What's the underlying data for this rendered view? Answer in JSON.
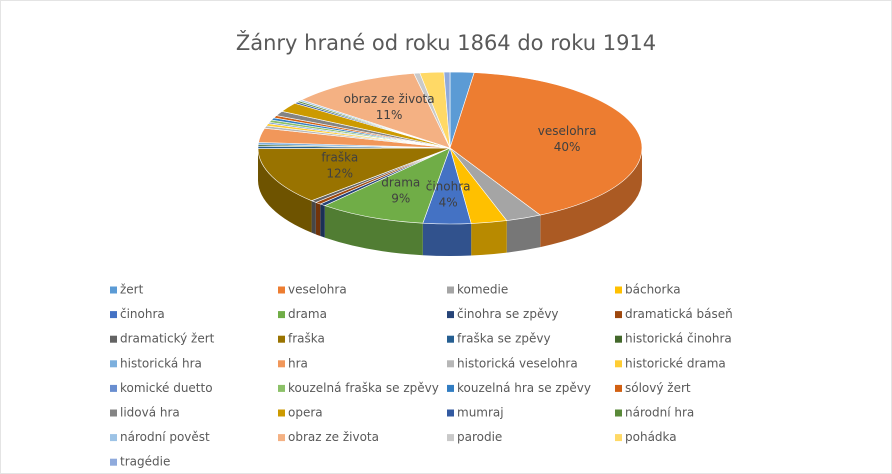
{
  "chart_data": {
    "type": "pie3d",
    "title": "Žánry hrané od roku 1864 do roku 1914",
    "categories": [
      "žert",
      "veselohra",
      "komedie",
      "báchorka",
      "činohra",
      "drama",
      "činohra se zpěvy",
      "dramatická báseň",
      "dramatický žert",
      "fraška",
      "fraška se zpěvy",
      "historická činohra",
      "historická hra",
      "hra",
      "historická veselohra",
      "historické drama",
      "komické duetto",
      "kouzelná fraška se zpěvy",
      "kouzelná hra se zpěvy",
      "sólový žert",
      "lidová hra",
      "opera",
      "mumraj",
      "národní hra",
      "národní pověst",
      "obraz ze života",
      "parodie",
      "pohádka",
      "tragédie"
    ],
    "values": [
      2,
      40,
      3,
      3,
      4,
      9,
      0.5,
      0.5,
      0.5,
      12,
      0.5,
      0.3,
      0.5,
      3,
      0.5,
      0.5,
      0.3,
      0.5,
      0.5,
      0.5,
      1,
      2,
      0.3,
      0.3,
      0.3,
      11,
      0.5,
      2,
      0.5
    ],
    "value_labels": [
      null,
      "40%",
      null,
      null,
      "4%",
      "9%",
      null,
      null,
      null,
      "12%",
      null,
      null,
      null,
      null,
      null,
      null,
      null,
      null,
      null,
      null,
      null,
      null,
      null,
      null,
      null,
      "11%",
      null,
      null,
      null
    ],
    "colors": [
      "#5b9bd5",
      "#ed7d31",
      "#a5a5a5",
      "#ffc000",
      "#4472c4",
      "#70ad47",
      "#264478",
      "#9e480e",
      "#636363",
      "#997300",
      "#255e91",
      "#43682b",
      "#7cafdd",
      "#f1975a",
      "#b7b7b7",
      "#ffcd33",
      "#698ed0",
      "#8cc168",
      "#327dc2",
      "#d26012",
      "#848484",
      "#cc9a00",
      "#335aa1",
      "#5a8a39",
      "#9dc3e6",
      "#f4b183",
      "#c9c9c9",
      "#ffd966",
      "#8faadc"
    ],
    "legend": "bottom"
  }
}
